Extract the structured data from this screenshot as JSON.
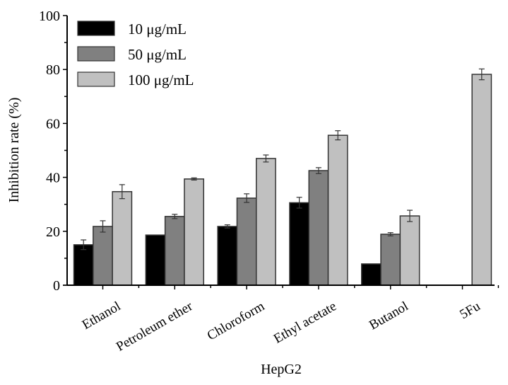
{
  "chart_data": {
    "type": "bar",
    "title": "",
    "xlabel": "HepG2",
    "ylabel": "Inhibition rate (%)",
    "ylim": [
      0,
      100
    ],
    "yticks": [
      0,
      20,
      40,
      60,
      80,
      100
    ],
    "categories": [
      "Ethanol",
      "Petroleum ether",
      "Chloroform",
      "Ethyl acetate",
      "Butanol",
      "5Fu"
    ],
    "series": [
      {
        "name": "10 μg/mL",
        "color": "#000000",
        "values": [
          15.0,
          18.6,
          21.8,
          30.6,
          7.9,
          null
        ],
        "errors": [
          1.8,
          0,
          0.6,
          2.0,
          0,
          null
        ]
      },
      {
        "name": "50 μg/mL",
        "color": "#808080",
        "values": [
          21.8,
          25.5,
          32.3,
          42.5,
          18.9,
          null
        ],
        "errors": [
          2.1,
          0.8,
          1.6,
          1.1,
          0.6,
          null
        ]
      },
      {
        "name": "100 μg/mL",
        "color": "#c0c0c0",
        "values": [
          34.7,
          39.4,
          47.0,
          55.6,
          25.7,
          78.2
        ],
        "errors": [
          2.6,
          0.4,
          1.3,
          1.7,
          2.1,
          2.0
        ]
      }
    ],
    "legend_position": "top-left",
    "grid": false
  }
}
